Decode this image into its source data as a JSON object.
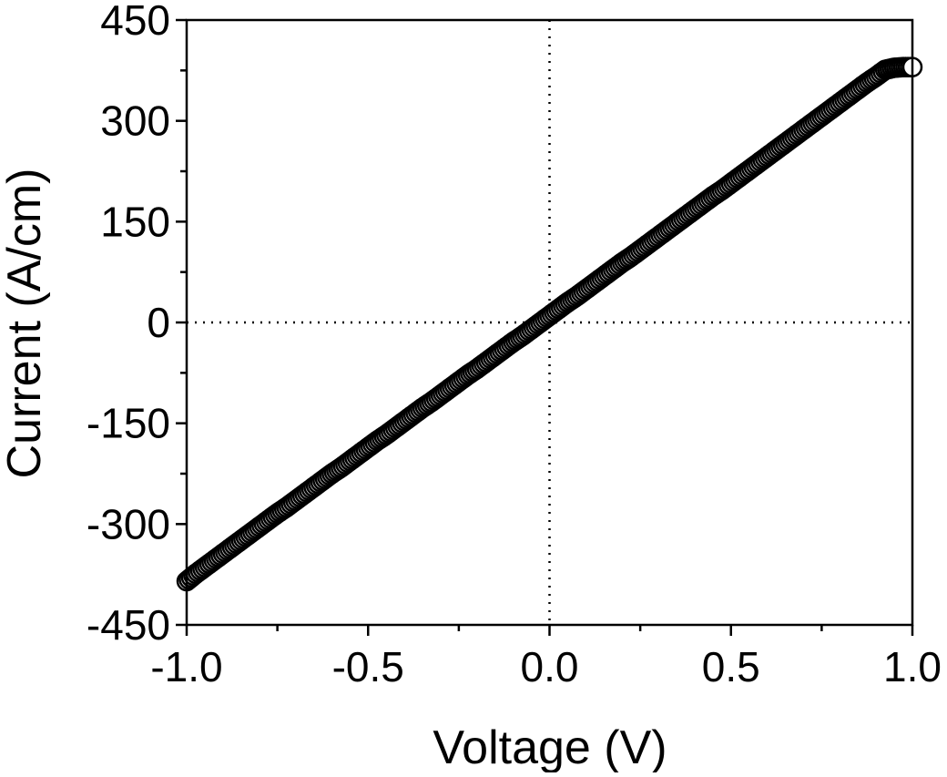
{
  "chart_data": {
    "type": "scatter",
    "title": "",
    "xlabel": "Voltage (V)",
    "ylabel": "Current (A/cm)",
    "xlim": [
      -1.0,
      1.0
    ],
    "ylim": [
      -450,
      450
    ],
    "x_ticks": [
      -1.0,
      -0.5,
      0.0,
      0.5,
      1.0
    ],
    "x_tick_labels": [
      "-1.0",
      "-0.5",
      "0.0",
      "0.5",
      "1.0"
    ],
    "y_ticks": [
      -450,
      -300,
      -150,
      0,
      150,
      300,
      450
    ],
    "y_tick_labels": [
      "-450",
      "-300",
      "-150",
      "0",
      "150",
      "300",
      "450"
    ],
    "reference_lines": {
      "x": 0,
      "y": 0,
      "style": "dotted"
    },
    "grid": false,
    "legend": "none",
    "colors": {
      "marker_stroke": "#000000",
      "marker_fill": "#ffffff",
      "axis": "#000000"
    },
    "series": [
      {
        "marker": "open-circle",
        "x": [
          -1.0,
          -0.975,
          -0.95,
          -0.925,
          -0.9,
          -0.875,
          -0.85,
          -0.825,
          -0.8,
          -0.775,
          -0.75,
          -0.725,
          -0.7,
          -0.675,
          -0.65,
          -0.625,
          -0.6,
          -0.575,
          -0.55,
          -0.525,
          -0.5,
          -0.475,
          -0.45,
          -0.425,
          -0.4,
          -0.375,
          -0.35,
          -0.325,
          -0.3,
          -0.275,
          -0.25,
          -0.225,
          -0.2,
          -0.175,
          -0.15,
          -0.125,
          -0.1,
          -0.075,
          -0.05,
          -0.025,
          0.0,
          0.025,
          0.05,
          0.075,
          0.1,
          0.125,
          0.15,
          0.175,
          0.2,
          0.225,
          0.25,
          0.275,
          0.3,
          0.325,
          0.35,
          0.375,
          0.4,
          0.425,
          0.45,
          0.475,
          0.5,
          0.525,
          0.55,
          0.575,
          0.6,
          0.625,
          0.65,
          0.675,
          0.7,
          0.725,
          0.75,
          0.775,
          0.8,
          0.825,
          0.85,
          0.875,
          0.9,
          0.925,
          0.95,
          0.975,
          1.0
        ],
        "y": [
          -385,
          -374,
          -364,
          -354,
          -344,
          -334,
          -324,
          -314,
          -304,
          -294,
          -284,
          -275,
          -265,
          -255,
          -245,
          -235,
          -225,
          -216,
          -206,
          -196,
          -186,
          -176,
          -167,
          -157,
          -147,
          -137,
          -127,
          -118,
          -108,
          -98,
          -88,
          -78,
          -69,
          -59,
          -49,
          -39,
          -29,
          -20,
          -10,
          0,
          10,
          20,
          30,
          39,
          49,
          59,
          69,
          79,
          89,
          98,
          108,
          118,
          128,
          138,
          148,
          158,
          168,
          178,
          188,
          197,
          207,
          217,
          227,
          237,
          247,
          257,
          267,
          277,
          287,
          297,
          307,
          317,
          327,
          337,
          347,
          357,
          366,
          376,
          379,
          380,
          380
        ]
      }
    ]
  }
}
